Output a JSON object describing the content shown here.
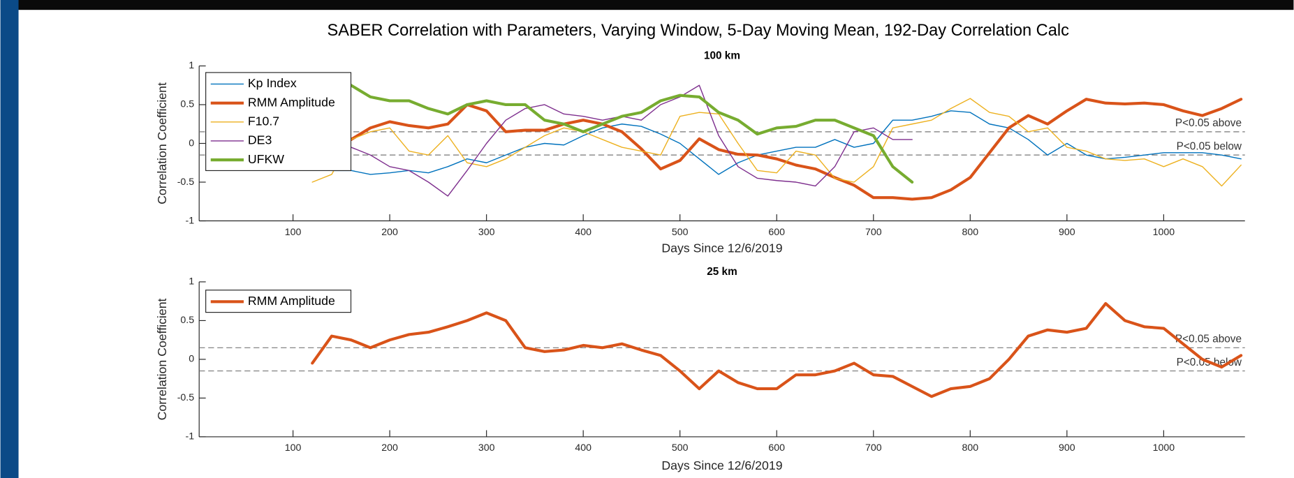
{
  "title": "SABER Correlation with Parameters, Varying Window, 5-Day Moving Mean, 192-Day Correlation Calc",
  "chart_data": [
    {
      "type": "line",
      "title": "100 km",
      "xlabel": "Days Since 12/6/2019",
      "ylabel": "Correlation Coefficient",
      "xlim": [
        3,
        1084
      ],
      "ylim": [
        -1,
        1
      ],
      "xticks": [
        100,
        200,
        300,
        400,
        500,
        600,
        700,
        800,
        900,
        1000
      ],
      "yticks": [
        -1,
        -0.5,
        0,
        0.5,
        1
      ],
      "legend": "upper left",
      "thresholds": [
        {
          "value": 0.15,
          "label": "P<0.05 above"
        },
        {
          "value": -0.15,
          "label": "P<0.05 below"
        }
      ],
      "x": [
        120,
        140,
        160,
        180,
        200,
        220,
        240,
        260,
        280,
        300,
        320,
        340,
        360,
        380,
        400,
        420,
        440,
        460,
        480,
        500,
        520,
        540,
        560,
        580,
        600,
        620,
        640,
        660,
        680,
        700,
        720,
        740,
        760,
        780,
        800,
        820,
        840,
        860,
        880,
        900,
        920,
        940,
        960,
        980,
        1000,
        1020,
        1040,
        1060,
        1080
      ],
      "series": [
        {
          "name": "Kp Index",
          "color": "#0072BD",
          "width": 1.2,
          "values": [
            null,
            -0.35,
            -0.35,
            -0.4,
            -0.38,
            -0.35,
            -0.38,
            -0.3,
            -0.2,
            -0.25,
            -0.15,
            -0.05,
            0.0,
            -0.02,
            0.1,
            0.2,
            0.25,
            0.22,
            0.12,
            0.0,
            -0.2,
            -0.4,
            -0.25,
            -0.15,
            -0.1,
            -0.05,
            -0.05,
            0.05,
            -0.05,
            0.0,
            0.3,
            0.3,
            0.35,
            0.42,
            0.4,
            0.25,
            0.2,
            0.05,
            -0.15,
            0.0,
            -0.15,
            -0.2,
            -0.18,
            -0.15,
            -0.12,
            -0.12,
            -0.12,
            -0.15,
            -0.2
          ]
        },
        {
          "name": "RMM Amplitude",
          "color": "#D95319",
          "width": 3.5,
          "values": [
            0.1,
            0.1,
            0.05,
            0.2,
            0.28,
            0.23,
            0.2,
            0.25,
            0.5,
            0.42,
            0.15,
            0.17,
            0.17,
            0.25,
            0.3,
            0.25,
            0.15,
            -0.07,
            -0.33,
            -0.22,
            0.06,
            -0.08,
            -0.14,
            -0.15,
            -0.2,
            -0.28,
            -0.33,
            -0.44,
            -0.54,
            -0.7,
            -0.7,
            -0.72,
            -0.7,
            -0.6,
            -0.44,
            -0.12,
            0.2,
            0.36,
            0.25,
            0.42,
            0.57,
            0.52,
            0.51,
            0.52,
            0.5,
            0.42,
            0.36,
            0.45,
            0.57
          ]
        },
        {
          "name": "F10.7",
          "color": "#EDB120",
          "width": 1.2,
          "values": [
            -0.5,
            -0.4,
            0.05,
            0.15,
            0.2,
            -0.1,
            -0.15,
            0.1,
            -0.25,
            -0.3,
            -0.2,
            -0.05,
            0.1,
            0.2,
            0.15,
            0.05,
            -0.05,
            -0.1,
            -0.15,
            0.35,
            0.4,
            0.38,
            0.0,
            -0.35,
            -0.38,
            -0.1,
            -0.15,
            -0.45,
            -0.5,
            -0.3,
            0.2,
            0.25,
            0.3,
            0.45,
            0.58,
            0.4,
            0.35,
            0.15,
            0.2,
            -0.05,
            -0.1,
            -0.2,
            -0.22,
            -0.2,
            -0.3,
            -0.2,
            -0.3,
            -0.55,
            -0.28
          ]
        },
        {
          "name": "DE3",
          "color": "#7E2F8E",
          "width": 1.2,
          "values": [
            null,
            null,
            -0.05,
            -0.15,
            -0.3,
            -0.35,
            -0.5,
            -0.68,
            -0.35,
            0.0,
            0.3,
            0.45,
            0.5,
            0.38,
            0.35,
            0.3,
            0.35,
            0.3,
            0.5,
            0.6,
            0.75,
            0.1,
            -0.3,
            -0.45,
            -0.48,
            -0.5,
            -0.55,
            -0.3,
            0.15,
            0.2,
            0.05,
            0.05,
            null,
            null,
            null,
            null,
            null,
            null,
            null,
            null,
            null,
            null,
            null,
            null,
            null,
            null,
            null,
            null,
            null
          ]
        },
        {
          "name": "UFKW",
          "color": "#77AC30",
          "width": 3.5,
          "values": [
            null,
            null,
            0.75,
            0.6,
            0.55,
            0.55,
            0.45,
            0.38,
            0.5,
            0.55,
            0.5,
            0.5,
            0.3,
            0.25,
            0.15,
            0.25,
            0.35,
            0.4,
            0.55,
            0.62,
            0.6,
            0.4,
            0.3,
            0.12,
            0.2,
            0.22,
            0.3,
            0.3,
            0.2,
            0.1,
            -0.3,
            -0.5,
            null,
            null,
            null,
            null,
            null,
            null,
            null,
            null,
            null,
            null,
            null,
            null,
            null,
            null,
            null,
            null,
            null
          ]
        }
      ]
    },
    {
      "type": "line",
      "title": "25 km",
      "xlabel": "Days Since 12/6/2019",
      "ylabel": "Correlation Coefficient",
      "xlim": [
        3,
        1084
      ],
      "ylim": [
        -1,
        1
      ],
      "xticks": [
        100,
        200,
        300,
        400,
        500,
        600,
        700,
        800,
        900,
        1000
      ],
      "yticks": [
        -1,
        -0.5,
        0,
        0.5,
        1
      ],
      "legend": "upper left",
      "thresholds": [
        {
          "value": 0.15,
          "label": "P<0.05 above"
        },
        {
          "value": -0.15,
          "label": "P<0.05 below"
        }
      ],
      "x": [
        120,
        140,
        160,
        180,
        200,
        220,
        240,
        260,
        280,
        300,
        320,
        340,
        360,
        380,
        400,
        420,
        440,
        460,
        480,
        500,
        520,
        540,
        560,
        580,
        600,
        620,
        640,
        660,
        680,
        700,
        720,
        740,
        760,
        780,
        800,
        820,
        840,
        860,
        880,
        900,
        920,
        940,
        960,
        980,
        1000,
        1020,
        1040,
        1060,
        1080
      ],
      "series": [
        {
          "name": "RMM Amplitude",
          "color": "#D95319",
          "width": 3.5,
          "values": [
            -0.05,
            0.3,
            0.25,
            0.15,
            0.25,
            0.32,
            0.35,
            0.42,
            0.5,
            0.6,
            0.5,
            0.15,
            0.1,
            0.12,
            0.18,
            0.15,
            0.2,
            0.12,
            0.05,
            -0.15,
            -0.38,
            -0.15,
            -0.3,
            -0.38,
            -0.38,
            -0.2,
            -0.2,
            -0.15,
            -0.05,
            -0.2,
            -0.22,
            -0.35,
            -0.48,
            -0.38,
            -0.35,
            -0.25,
            0.0,
            0.3,
            0.38,
            0.35,
            0.4,
            0.72,
            0.5,
            0.42,
            0.4,
            0.2,
            0.0,
            -0.1,
            0.05
          ]
        }
      ]
    }
  ]
}
